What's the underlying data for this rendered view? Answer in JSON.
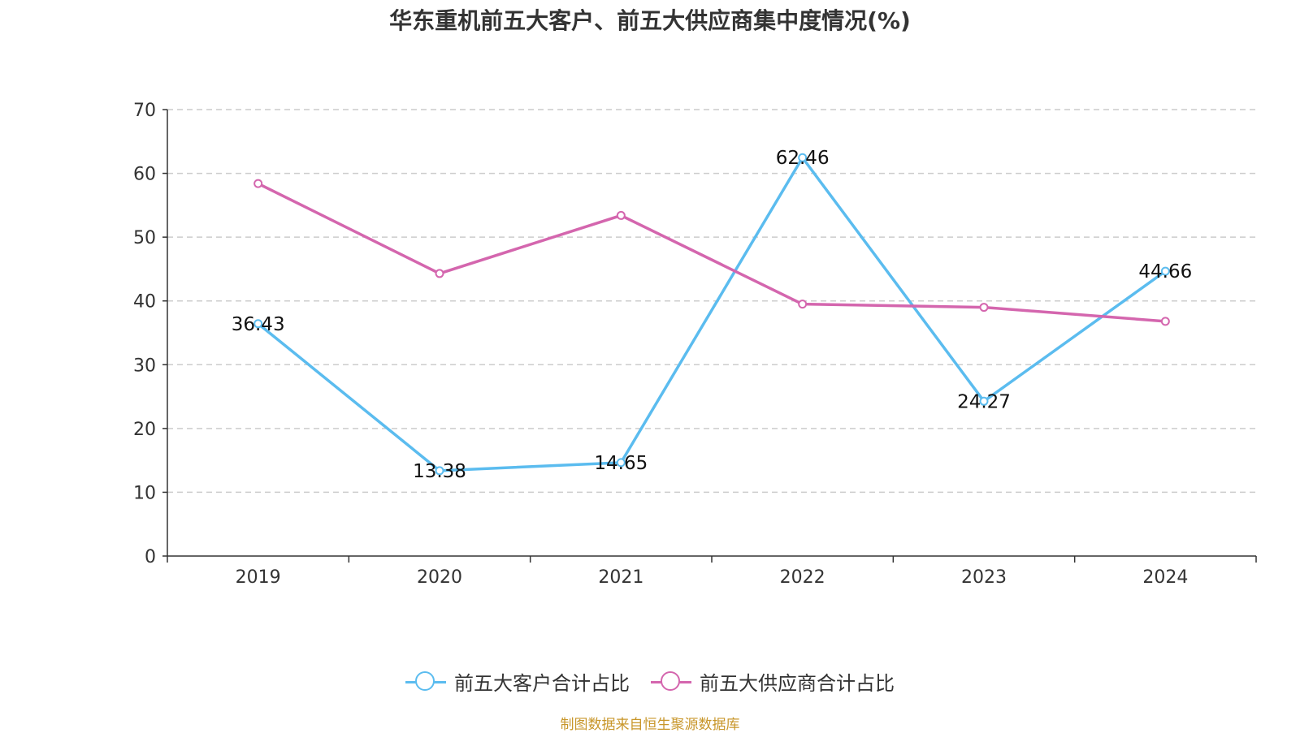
{
  "chart_data": {
    "type": "line",
    "title": "华东重机前五大客户、前五大供应商集中度情况(%)",
    "categories": [
      "2019",
      "2020",
      "2021",
      "2022",
      "2023",
      "2024"
    ],
    "ylim": [
      0,
      70
    ],
    "yticks": [
      0,
      10,
      20,
      30,
      40,
      50,
      60,
      70
    ],
    "grid": true,
    "legend_position": "bottom",
    "series": [
      {
        "name": "前五大客户合计占比",
        "color": "#5bbcef",
        "values": [
          36.43,
          13.38,
          14.65,
          62.46,
          24.27,
          44.66
        ],
        "labels": [
          "36.43",
          "13.38",
          "14.65",
          "62.46",
          "24.27",
          "44.66"
        ]
      },
      {
        "name": "前五大供应商合计占比",
        "color": "#d466ae",
        "values": [
          58.4,
          44.3,
          53.4,
          39.5,
          39.0,
          36.8
        ]
      }
    ]
  },
  "legend": {
    "customer_label": "前五大客户合计占比",
    "supplier_label": "前五大供应商合计占比"
  },
  "source": "制图数据来自恒生聚源数据库"
}
